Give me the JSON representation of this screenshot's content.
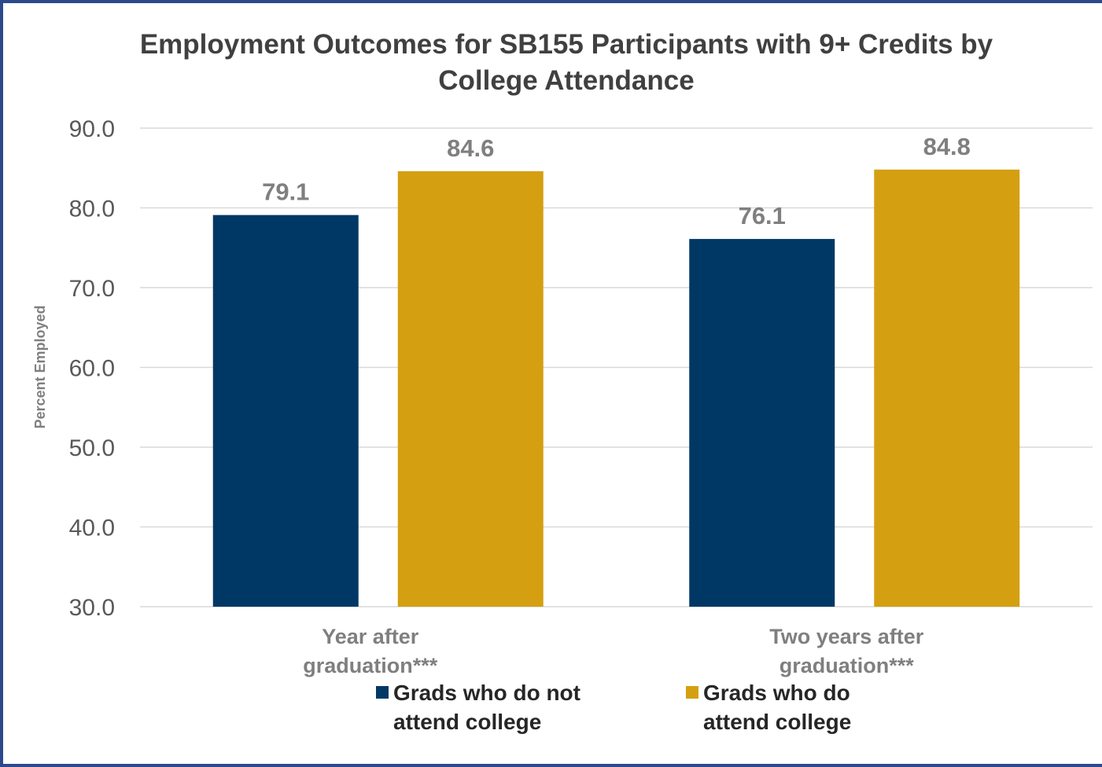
{
  "chart_data": {
    "type": "bar",
    "title": "Employment Outcomes for SB155 Participants with 9+ Credits by College Attendance",
    "ylabel": "Percent Employed",
    "xlabel": "",
    "ylim": [
      30,
      90
    ],
    "yticks": [
      90.0,
      80.0,
      70.0,
      60.0,
      50.0,
      40.0,
      30.0
    ],
    "ytick_labels": [
      "90.0",
      "80.0",
      "70.0",
      "60.0",
      "50.0",
      "40.0",
      "30.0"
    ],
    "grid": true,
    "legend_position": "bottom",
    "categories": [
      [
        "Year after",
        "graduation***"
      ],
      [
        "Two years after",
        "graduation***"
      ]
    ],
    "series": [
      {
        "name": [
          "Grads who do not",
          "attend college"
        ],
        "color": "#003865",
        "values": [
          79.1,
          76.1
        ],
        "labels": [
          "79.1",
          "76.1"
        ]
      },
      {
        "name": [
          "Grads who do",
          "attend college"
        ],
        "color": "#d4a011",
        "values": [
          84.6,
          84.8
        ],
        "labels": [
          "84.6",
          "84.8"
        ]
      }
    ]
  }
}
